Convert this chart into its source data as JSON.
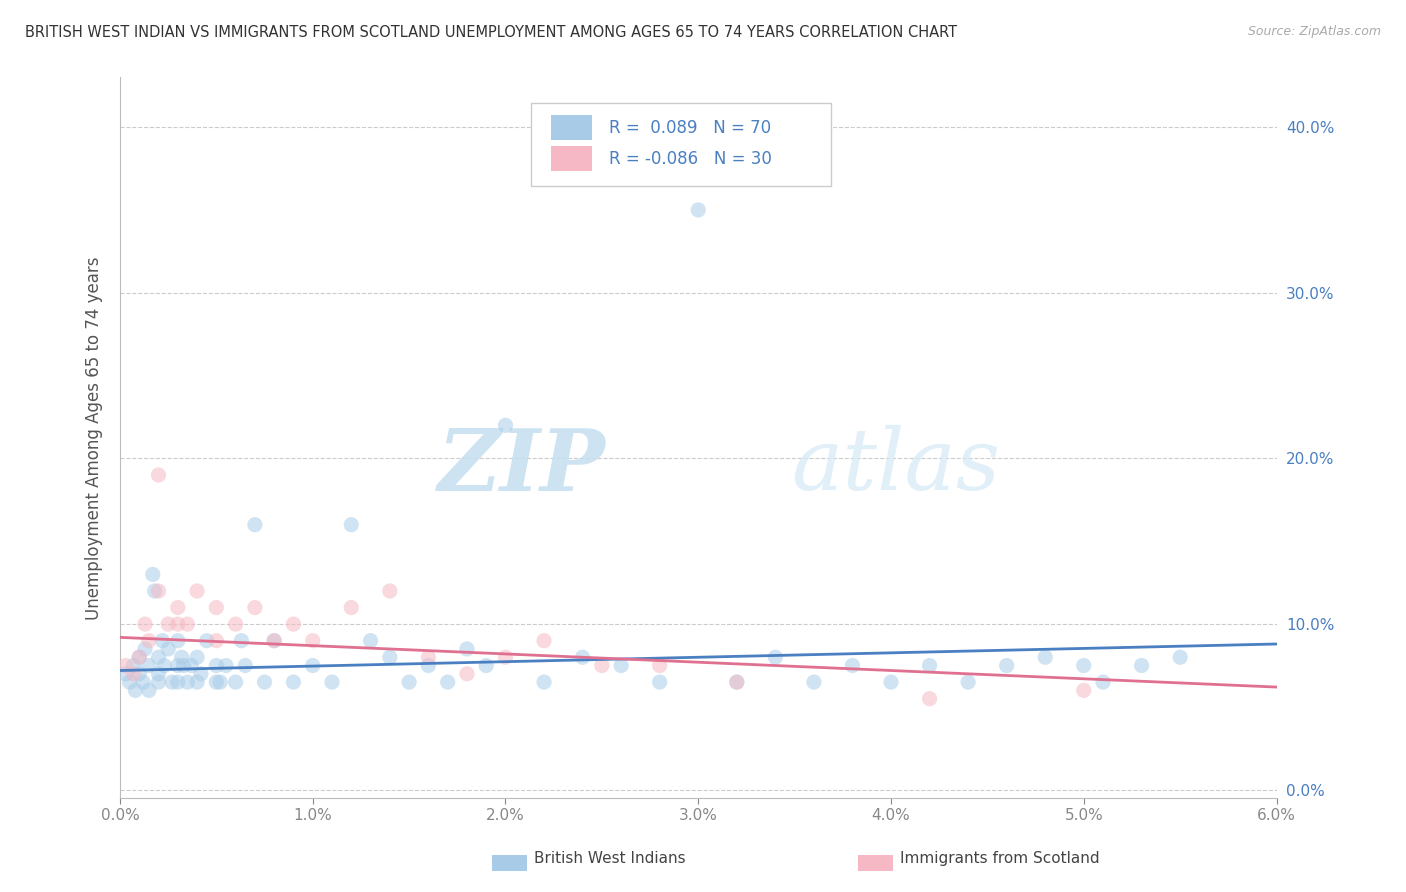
{
  "title": "BRITISH WEST INDIAN VS IMMIGRANTS FROM SCOTLAND UNEMPLOYMENT AMONG AGES 65 TO 74 YEARS CORRELATION CHART",
  "source": "Source: ZipAtlas.com",
  "ylabel": "Unemployment Among Ages 65 to 74 years",
  "xlim": [
    0.0,
    0.06
  ],
  "ylim": [
    -0.005,
    0.43
  ],
  "xticks": [
    0.0,
    0.01,
    0.02,
    0.03,
    0.04,
    0.05,
    0.06
  ],
  "yticks": [
    0.0,
    0.1,
    0.2,
    0.3,
    0.4
  ],
  "xtick_labels": [
    "0.0%",
    "1.0%",
    "2.0%",
    "3.0%",
    "4.0%",
    "5.0%",
    "6.0%"
  ],
  "ytick_labels": [
    "0.0%",
    "10.0%",
    "20.0%",
    "30.0%",
    "40.0%"
  ],
  "watermark_zip": "ZIP",
  "watermark_atlas": "atlas",
  "legend_label1": "British West Indians",
  "legend_label2": "Immigrants from Scotland",
  "R1": 0.089,
  "N1": 70,
  "R2": -0.086,
  "N2": 30,
  "blue_color": "#a8cce8",
  "blue_line_color": "#4a7fc1",
  "pink_color": "#f5b8c4",
  "pink_line_color": "#e07090",
  "scatter_alpha": 0.55,
  "scatter_size": 120,
  "blue_x": [
    0.0003,
    0.0005,
    0.0007,
    0.0008,
    0.001,
    0.001,
    0.0012,
    0.0013,
    0.0015,
    0.0015,
    0.0017,
    0.0018,
    0.002,
    0.002,
    0.002,
    0.0022,
    0.0023,
    0.0025,
    0.0027,
    0.003,
    0.003,
    0.003,
    0.0032,
    0.0033,
    0.0035,
    0.0037,
    0.004,
    0.004,
    0.0042,
    0.0045,
    0.005,
    0.005,
    0.0052,
    0.0055,
    0.006,
    0.0063,
    0.0065,
    0.007,
    0.0075,
    0.008,
    0.009,
    0.01,
    0.011,
    0.012,
    0.013,
    0.014,
    0.015,
    0.016,
    0.017,
    0.018,
    0.019,
    0.02,
    0.022,
    0.024,
    0.026,
    0.028,
    0.03,
    0.032,
    0.034,
    0.036,
    0.038,
    0.04,
    0.042,
    0.044,
    0.046,
    0.048,
    0.05,
    0.051,
    0.053,
    0.055
  ],
  "blue_y": [
    0.07,
    0.065,
    0.075,
    0.06,
    0.08,
    0.07,
    0.065,
    0.085,
    0.06,
    0.075,
    0.13,
    0.12,
    0.065,
    0.08,
    0.07,
    0.09,
    0.075,
    0.085,
    0.065,
    0.075,
    0.09,
    0.065,
    0.08,
    0.075,
    0.065,
    0.075,
    0.065,
    0.08,
    0.07,
    0.09,
    0.065,
    0.075,
    0.065,
    0.075,
    0.065,
    0.09,
    0.075,
    0.16,
    0.065,
    0.09,
    0.065,
    0.075,
    0.065,
    0.16,
    0.09,
    0.08,
    0.065,
    0.075,
    0.065,
    0.085,
    0.075,
    0.22,
    0.065,
    0.08,
    0.075,
    0.065,
    0.35,
    0.065,
    0.08,
    0.065,
    0.075,
    0.065,
    0.075,
    0.065,
    0.075,
    0.08,
    0.075,
    0.065,
    0.075,
    0.08
  ],
  "pink_x": [
    0.0003,
    0.0007,
    0.001,
    0.0013,
    0.0015,
    0.002,
    0.002,
    0.0025,
    0.003,
    0.003,
    0.0035,
    0.004,
    0.005,
    0.005,
    0.006,
    0.007,
    0.008,
    0.009,
    0.01,
    0.012,
    0.014,
    0.016,
    0.018,
    0.02,
    0.022,
    0.025,
    0.028,
    0.032,
    0.042,
    0.05
  ],
  "pink_y": [
    0.075,
    0.07,
    0.08,
    0.1,
    0.09,
    0.12,
    0.19,
    0.1,
    0.11,
    0.1,
    0.1,
    0.12,
    0.09,
    0.11,
    0.1,
    0.11,
    0.09,
    0.1,
    0.09,
    0.11,
    0.12,
    0.08,
    0.07,
    0.08,
    0.09,
    0.075,
    0.075,
    0.065,
    0.055,
    0.06
  ],
  "blue_trendline_y0": 0.072,
  "blue_trendline_y1": 0.088,
  "pink_trendline_y0": 0.092,
  "pink_trendline_y1": 0.062
}
